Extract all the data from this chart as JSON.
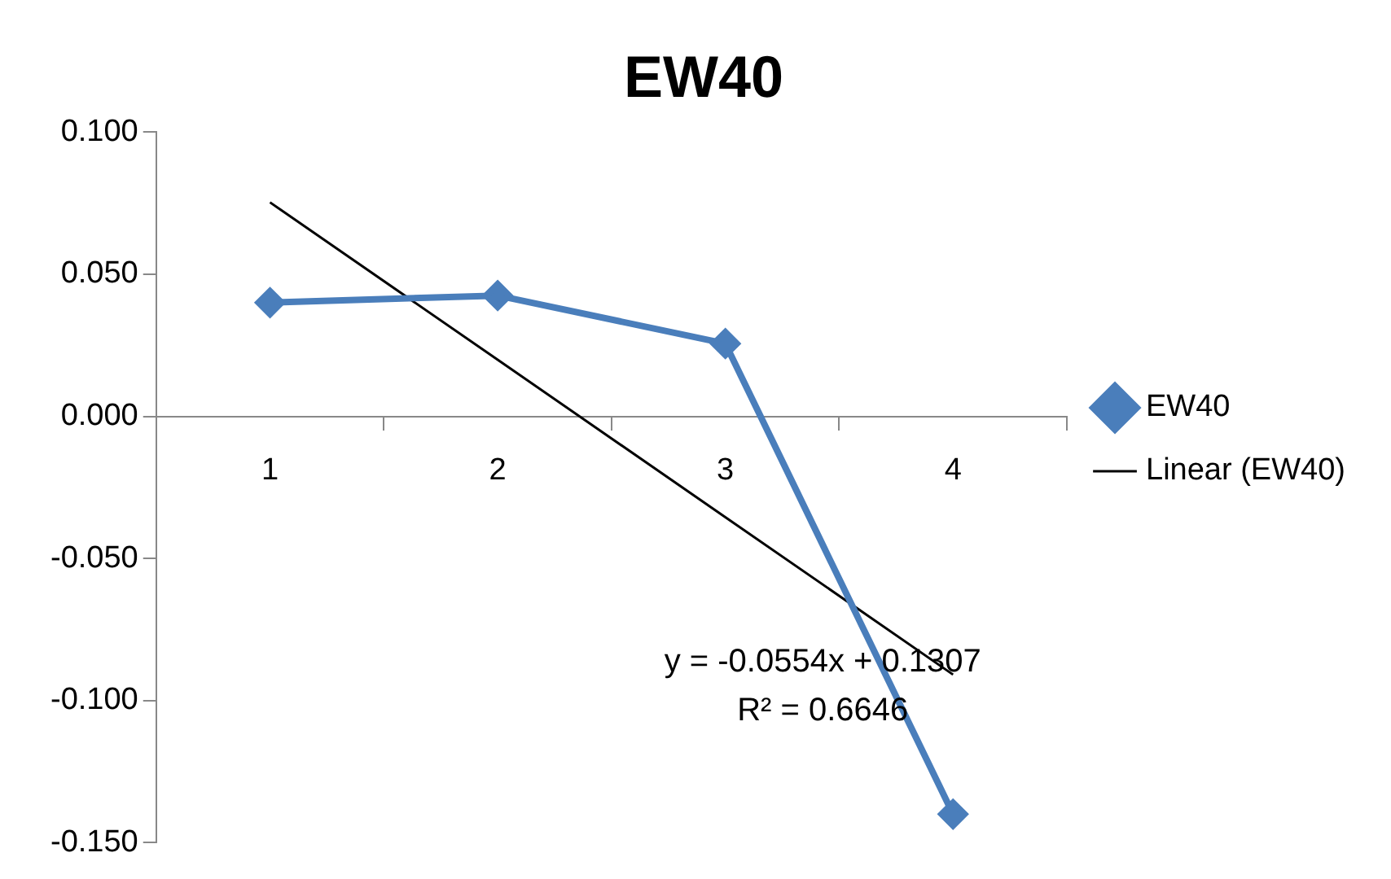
{
  "chart_data": {
    "type": "line",
    "title": "EW40",
    "categories": [
      "1",
      "2",
      "3",
      "4"
    ],
    "series": [
      {
        "name": "EW40",
        "color": "#4a7ebb",
        "values": [
          0.04,
          0.0425,
          0.0256,
          -0.14
        ],
        "marker": "diamond"
      },
      {
        "name": "Linear (EW40)",
        "type": "line",
        "color": "#000000",
        "values": [
          0.0753,
          0.0199,
          -0.0355,
          -0.0909
        ],
        "marker": "none"
      }
    ],
    "ylim": [
      -0.15,
      0.1
    ],
    "yticks": [
      {
        "value": -0.15,
        "label": "-0.150"
      },
      {
        "value": -0.1,
        "label": "-0.100"
      },
      {
        "value": -0.05,
        "label": "-0.050"
      },
      {
        "value": 0,
        "label": "0.000"
      },
      {
        "value": 0.05,
        "label": "0.050"
      },
      {
        "value": 0.1,
        "label": "0.100"
      }
    ],
    "annotations": [
      "y = -0.0554x + 0.1307",
      "R² = 0.6646"
    ],
    "legend": "right",
    "grid": false
  }
}
